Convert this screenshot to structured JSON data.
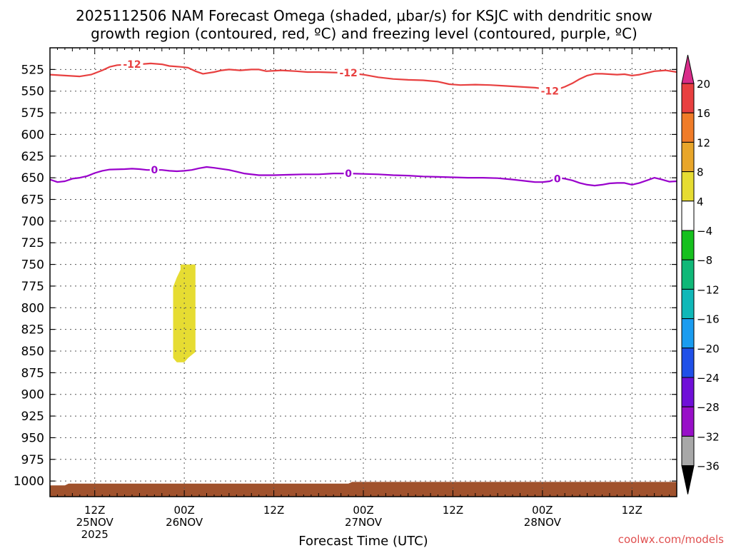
{
  "chart_data": {
    "type": "contour",
    "title_line1": "2025112506 NAM Forecast Omega (shaded, μbar/s) for KSJC with dendritic snow",
    "title_line2": "growth region (contoured, red, ºC) and freezing level (contoured, purple, ºC)",
    "xlabel": "Forecast Time (UTC)",
    "x_range_hours": [
      0,
      84
    ],
    "x_ticks": [
      {
        "hour": 6,
        "lines": [
          "12Z",
          "25NOV",
          "2025"
        ]
      },
      {
        "hour": 18,
        "lines": [
          "00Z",
          "26NOV"
        ]
      },
      {
        "hour": 30,
        "lines": [
          "12Z"
        ]
      },
      {
        "hour": 42,
        "lines": [
          "00Z",
          "27NOV"
        ]
      },
      {
        "hour": 54,
        "lines": [
          "12Z"
        ]
      },
      {
        "hour": 66,
        "lines": [
          "00Z",
          "28NOV"
        ]
      },
      {
        "hour": 78,
        "lines": [
          "12Z"
        ]
      }
    ],
    "y_ticks": [
      525,
      550,
      575,
      600,
      625,
      650,
      675,
      700,
      725,
      750,
      775,
      800,
      825,
      850,
      875,
      900,
      925,
      950,
      975,
      1000
    ],
    "y_range_hpa": [
      500,
      1018
    ],
    "grid": true,
    "contours": [
      {
        "name": "-12",
        "color": "#e84040",
        "labels": [
          {
            "hour": 11,
            "hpa": 519
          },
          {
            "hour": 40,
            "hpa": 529
          },
          {
            "hour": 67,
            "hpa": 550
          }
        ],
        "points": [
          [
            0,
            531
          ],
          [
            2,
            532
          ],
          [
            4,
            533
          ],
          [
            5.5,
            531
          ],
          [
            7,
            526
          ],
          [
            8,
            522
          ],
          [
            9,
            520
          ],
          [
            10,
            519.5
          ],
          [
            12,
            519
          ],
          [
            13.5,
            518
          ],
          [
            15,
            519
          ],
          [
            16,
            521
          ],
          [
            17.5,
            522
          ],
          [
            18.5,
            523
          ],
          [
            19.5,
            527
          ],
          [
            20.5,
            530
          ],
          [
            22,
            528
          ],
          [
            23,
            526
          ],
          [
            24,
            525
          ],
          [
            25.5,
            526
          ],
          [
            27,
            525
          ],
          [
            28,
            525
          ],
          [
            29,
            527
          ],
          [
            31,
            526
          ],
          [
            33,
            527
          ],
          [
            34.5,
            528
          ],
          [
            36,
            528
          ],
          [
            38,
            528.5
          ],
          [
            40,
            529
          ],
          [
            42,
            531
          ],
          [
            44,
            534
          ],
          [
            46,
            536
          ],
          [
            48,
            537
          ],
          [
            50,
            537.5
          ],
          [
            52,
            539
          ],
          [
            53.5,
            542
          ],
          [
            55,
            543
          ],
          [
            57,
            542.5
          ],
          [
            59,
            543
          ],
          [
            61,
            544
          ],
          [
            63,
            545
          ],
          [
            65,
            546
          ],
          [
            66,
            547
          ],
          [
            68,
            548
          ],
          [
            69,
            545
          ],
          [
            70,
            541
          ],
          [
            71,
            536
          ],
          [
            72,
            532
          ],
          [
            73,
            530
          ],
          [
            74,
            530
          ],
          [
            76,
            531
          ],
          [
            77,
            530.5
          ],
          [
            78,
            532
          ],
          [
            79,
            531
          ],
          [
            80,
            529
          ],
          [
            81,
            527
          ],
          [
            82.5,
            526
          ],
          [
            84,
            528
          ]
        ]
      },
      {
        "name": "0",
        "color": "#9900cc",
        "labels": [
          {
            "hour": 14,
            "hpa": 641
          },
          {
            "hour": 40,
            "hpa": 645
          },
          {
            "hour": 68,
            "hpa": 651
          }
        ],
        "points": [
          [
            0,
            652
          ],
          [
            1,
            655
          ],
          [
            2,
            654
          ],
          [
            3,
            651
          ],
          [
            4,
            650
          ],
          [
            5,
            648
          ],
          [
            6,
            644.5
          ],
          [
            7,
            642
          ],
          [
            8,
            640.5
          ],
          [
            10,
            640
          ],
          [
            11,
            639.5
          ],
          [
            12,
            640
          ],
          [
            13,
            641
          ],
          [
            15,
            641
          ],
          [
            16,
            642
          ],
          [
            17,
            642.5
          ],
          [
            18,
            642
          ],
          [
            19,
            641
          ],
          [
            20,
            639
          ],
          [
            21,
            637.5
          ],
          [
            22,
            638.5
          ],
          [
            24,
            641
          ],
          [
            25,
            643
          ],
          [
            26,
            645
          ],
          [
            28,
            647
          ],
          [
            30,
            647
          ],
          [
            32,
            646.5
          ],
          [
            34,
            646
          ],
          [
            36,
            646
          ],
          [
            38,
            645
          ],
          [
            40,
            645
          ],
          [
            42,
            645.5
          ],
          [
            44,
            646
          ],
          [
            46,
            647
          ],
          [
            48,
            647.5
          ],
          [
            50,
            648.5
          ],
          [
            52,
            649
          ],
          [
            54,
            649.5
          ],
          [
            56,
            650
          ],
          [
            58,
            650
          ],
          [
            60,
            650.5
          ],
          [
            62,
            652
          ],
          [
            64,
            654
          ],
          [
            65,
            655
          ],
          [
            66,
            655
          ],
          [
            67,
            654
          ],
          [
            68,
            650
          ],
          [
            69,
            651
          ],
          [
            70,
            653
          ],
          [
            71,
            656
          ],
          [
            72,
            658
          ],
          [
            73,
            659
          ],
          [
            74,
            658
          ],
          [
            75,
            656.5
          ],
          [
            76,
            656
          ],
          [
            77,
            656
          ],
          [
            78,
            658
          ],
          [
            79,
            656
          ],
          [
            80,
            653
          ],
          [
            81,
            650
          ],
          [
            82,
            652
          ],
          [
            83,
            654.5
          ],
          [
            84,
            654
          ]
        ]
      }
    ],
    "shaded_regions": [
      {
        "name": "omega 4 to 8",
        "color": "#e6dc32",
        "points": [
          [
            17.5,
            750
          ],
          [
            19.5,
            750
          ],
          [
            19.5,
            851
          ],
          [
            18.5,
            858
          ],
          [
            18,
            863
          ],
          [
            17,
            863
          ],
          [
            16.5,
            858
          ],
          [
            16.5,
            844
          ],
          [
            16.5,
            776
          ],
          [
            17,
            765
          ],
          [
            17.5,
            756
          ]
        ]
      }
    ],
    "terrain": {
      "color": "#a0522d",
      "points": [
        [
          0,
          1005
        ],
        [
          2,
          1005
        ],
        [
          2.5,
          1003
        ],
        [
          40,
          1003
        ],
        [
          40.5,
          1001
        ],
        [
          84,
          1001
        ]
      ]
    },
    "colorbar": {
      "labels": [
        "20",
        "16",
        "12",
        "8",
        "4",
        "−4",
        "−8",
        "−12",
        "−16",
        "−20",
        "−24",
        "−28",
        "−32",
        "−36"
      ],
      "colors": [
        "#d92d8a",
        "#e84040",
        "#f07c28",
        "#e8a62a",
        "#e6dc32",
        "#ffffff",
        "#16c01e",
        "#10b878",
        "#10b8b8",
        "#1a9cf0",
        "#2050e8",
        "#7010d8",
        "#9810c8",
        "#a8a8a8",
        "#000000"
      ]
    }
  },
  "credit": "coolwx.com/models"
}
